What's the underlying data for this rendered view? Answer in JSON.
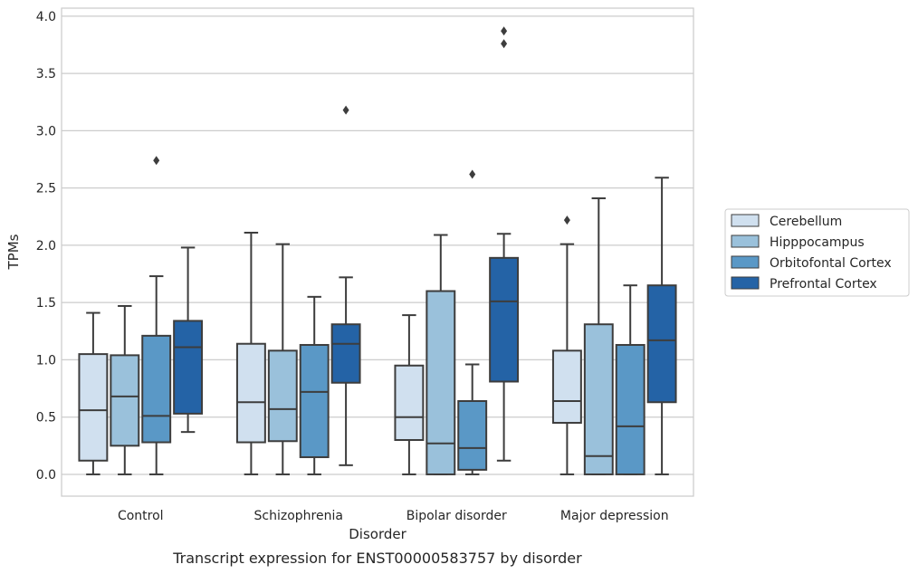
{
  "chart_data": {
    "type": "box",
    "xlabel": "Disorder",
    "ylabel": "TPMs",
    "caption": "Transcript expression for ENST00000583757 by disorder",
    "ylim": [
      -0.19,
      4.07
    ],
    "yticks": [
      0.0,
      0.5,
      1.0,
      1.5,
      2.0,
      2.5,
      3.0,
      3.5,
      4.0
    ],
    "ytick_labels": [
      "0.0",
      "0.5",
      "1.0",
      "1.5",
      "2.0",
      "2.5",
      "3.0",
      "3.5",
      "4.0"
    ],
    "grid": "horizontal",
    "legend_position": "right",
    "categories": [
      "Control",
      "Schizophrenia",
      "Bipolar disorder",
      "Major depression"
    ],
    "series": [
      {
        "name": "Cerebellum",
        "color": "#d0e0ef",
        "boxes": [
          {
            "whisker_low": 0.0,
            "q1": 0.12,
            "median": 0.56,
            "q3": 1.05,
            "whisker_high": 1.41,
            "outliers": []
          },
          {
            "whisker_low": 0.0,
            "q1": 0.28,
            "median": 0.63,
            "q3": 1.14,
            "whisker_high": 2.11,
            "outliers": []
          },
          {
            "whisker_low": 0.0,
            "q1": 0.3,
            "median": 0.5,
            "q3": 0.95,
            "whisker_high": 1.39,
            "outliers": []
          },
          {
            "whisker_low": 0.0,
            "q1": 0.45,
            "median": 0.64,
            "q3": 1.08,
            "whisker_high": 2.01,
            "outliers": [
              2.22
            ]
          }
        ]
      },
      {
        "name": "Hipppocampus",
        "color": "#9ac1db",
        "boxes": [
          {
            "whisker_low": 0.0,
            "q1": 0.25,
            "median": 0.68,
            "q3": 1.04,
            "whisker_high": 1.47,
            "outliers": []
          },
          {
            "whisker_low": 0.0,
            "q1": 0.29,
            "median": 0.57,
            "q3": 1.08,
            "whisker_high": 2.01,
            "outliers": []
          },
          {
            "whisker_low": 0.0,
            "q1": 0.0,
            "median": 0.27,
            "q3": 1.6,
            "whisker_high": 2.09,
            "outliers": []
          },
          {
            "whisker_low": 0.0,
            "q1": 0.0,
            "median": 0.16,
            "q3": 1.31,
            "whisker_high": 2.41,
            "outliers": []
          }
        ]
      },
      {
        "name": "Orbitofontal Cortex",
        "color": "#5a98c6",
        "boxes": [
          {
            "whisker_low": 0.0,
            "q1": 0.28,
            "median": 0.51,
            "q3": 1.21,
            "whisker_high": 1.73,
            "outliers": [
              2.74
            ]
          },
          {
            "whisker_low": 0.0,
            "q1": 0.15,
            "median": 0.72,
            "q3": 1.13,
            "whisker_high": 1.55,
            "outliers": []
          },
          {
            "whisker_low": 0.0,
            "q1": 0.04,
            "median": 0.23,
            "q3": 0.64,
            "whisker_high": 0.96,
            "outliers": [
              2.62
            ]
          },
          {
            "whisker_low": 0.0,
            "q1": 0.0,
            "median": 0.42,
            "q3": 1.13,
            "whisker_high": 1.65,
            "outliers": []
          }
        ]
      },
      {
        "name": "Prefrontal Cortex",
        "color": "#2463a6",
        "boxes": [
          {
            "whisker_low": 0.37,
            "q1": 0.53,
            "median": 1.11,
            "q3": 1.34,
            "whisker_high": 1.98,
            "outliers": []
          },
          {
            "whisker_low": 0.08,
            "q1": 0.8,
            "median": 1.14,
            "q3": 1.31,
            "whisker_high": 1.72,
            "outliers": [
              3.18
            ]
          },
          {
            "whisker_low": 0.12,
            "q1": 0.81,
            "median": 1.51,
            "q3": 1.89,
            "whisker_high": 2.1,
            "outliers": [
              3.76,
              3.87
            ]
          },
          {
            "whisker_low": 0.0,
            "q1": 0.63,
            "median": 1.17,
            "q3": 1.65,
            "whisker_high": 2.59,
            "outliers": []
          }
        ]
      }
    ]
  }
}
